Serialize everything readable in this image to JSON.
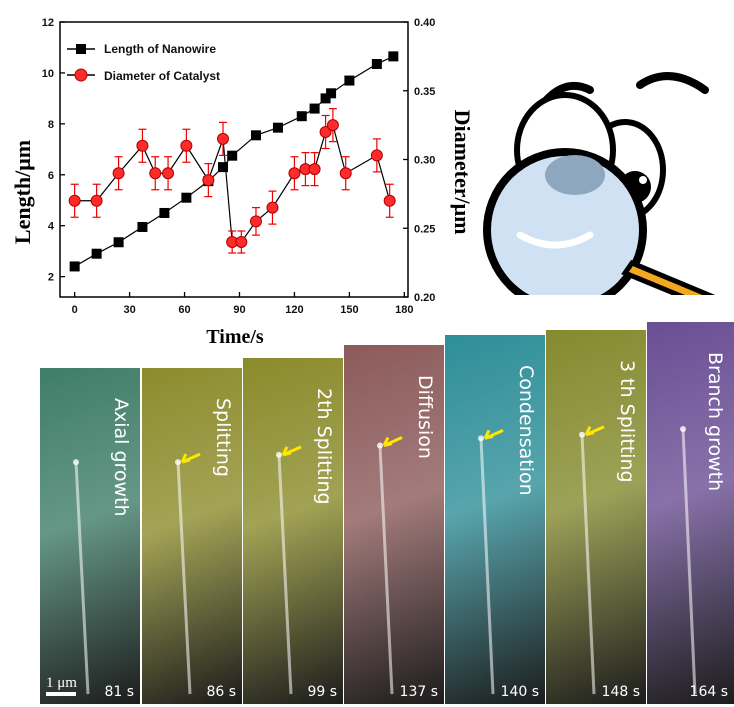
{
  "chart_data": {
    "type": "line",
    "xlabel": "Time/s",
    "ylabel_left": "Length/μm",
    "ylabel_right": "Diameter/μm",
    "x_ticks": [
      "0",
      "30",
      "60",
      "90",
      "120",
      "150",
      "180"
    ],
    "y_left_ticks": [
      "2",
      "4",
      "6",
      "8",
      "10",
      "12"
    ],
    "y_right_ticks": [
      "0.20",
      "0.25",
      "0.30",
      "0.35",
      "0.40"
    ],
    "xlim": [
      -8,
      182
    ],
    "ylim_left": [
      1.2,
      12
    ],
    "ylim_right": [
      0.2,
      0.4
    ],
    "series": [
      {
        "name": "Length of Nanowire",
        "axis": "left",
        "marker": "square",
        "color": "#000000",
        "x": [
          0,
          12,
          24,
          37,
          49,
          61,
          73,
          81,
          86,
          99,
          111,
          124,
          131,
          137,
          140,
          150,
          165,
          174
        ],
        "y": [
          2.4,
          2.9,
          3.35,
          3.95,
          4.5,
          5.1,
          5.75,
          6.3,
          6.75,
          7.55,
          7.85,
          8.3,
          8.6,
          9.0,
          9.2,
          9.7,
          10.35,
          10.65
        ]
      },
      {
        "name": "Diameter of Catalyst",
        "axis": "right",
        "marker": "circle",
        "color": "#ff2a2a",
        "x": [
          0,
          12,
          24,
          37,
          44,
          51,
          61,
          73,
          81,
          86,
          91,
          99,
          108,
          120,
          126,
          131,
          137,
          141,
          148,
          165,
          172
        ],
        "y": [
          0.27,
          0.27,
          0.29,
          0.31,
          0.29,
          0.29,
          0.31,
          0.285,
          0.315,
          0.24,
          0.24,
          0.255,
          0.265,
          0.29,
          0.293,
          0.293,
          0.32,
          0.325,
          0.29,
          0.303,
          0.27
        ],
        "err": [
          0.012,
          0.012,
          0.012,
          0.012,
          0.012,
          0.012,
          0.012,
          0.012,
          0.012,
          0.008,
          0.008,
          0.01,
          0.012,
          0.012,
          0.012,
          0.012,
          0.012,
          0.012,
          0.012,
          0.012,
          0.012
        ]
      }
    ],
    "legend_position": "top-left"
  },
  "panels": [
    {
      "label": "Axial growth",
      "time": "81 s",
      "color": "#3f7d68"
    },
    {
      "label": "Splitting",
      "time": "86 s",
      "color": "#8c8c2c"
    },
    {
      "label": "2th Splitting",
      "time": "99 s",
      "color": "#8a8b2a"
    },
    {
      "label": "Diffusion",
      "time": "137 s",
      "color": "#8c5a5a"
    },
    {
      "label": "Condensation",
      "time": "140 s",
      "color": "#2e8e98"
    },
    {
      "label": "3 th Splitting",
      "time": "148 s",
      "color": "#858a2e"
    },
    {
      "label": "Branch growth",
      "time": "164 s",
      "color": "#6a4e94"
    }
  ],
  "scale_bar": "1 μm"
}
